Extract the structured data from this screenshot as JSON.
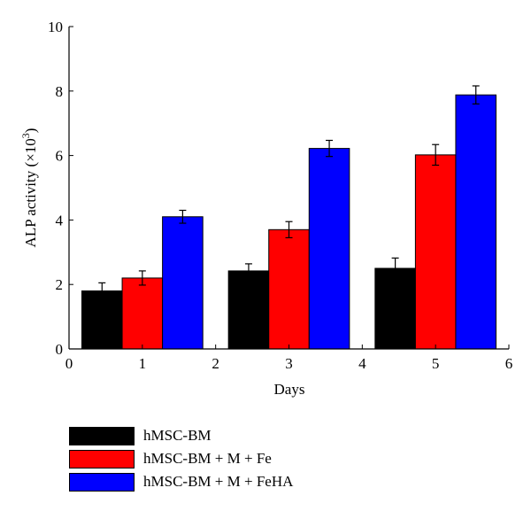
{
  "chart_data": {
    "type": "bar",
    "xlabel": "Days",
    "ylabel": "ALP activity (×10",
    "ylabel_sup": "3",
    "ylabel_close": ")",
    "xlim": [
      0,
      6
    ],
    "ylim": [
      0,
      10
    ],
    "x_ticks": [
      "0",
      "1",
      "2",
      "3",
      "4",
      "5",
      "6"
    ],
    "y_ticks": [
      "0",
      "2",
      "4",
      "6",
      "8",
      "10"
    ],
    "grid": false,
    "legend_position": "bottom",
    "groups_x": [
      1,
      3,
      5
    ],
    "series": [
      {
        "name": "hMSC-BM",
        "color": "#000000",
        "values": [
          1.8,
          2.42,
          2.5
        ],
        "errors": [
          0.25,
          0.22,
          0.32
        ]
      },
      {
        "name": "hMSC-BM + M + Fe",
        "color": "#ff0000",
        "values": [
          2.2,
          3.7,
          6.02
        ],
        "errors": [
          0.22,
          0.25,
          0.32
        ]
      },
      {
        "name": "hMSC-BM + M + FeHA",
        "color": "#0000ff",
        "values": [
          4.1,
          6.22,
          7.88
        ],
        "errors": [
          0.2,
          0.25,
          0.28
        ]
      }
    ]
  }
}
